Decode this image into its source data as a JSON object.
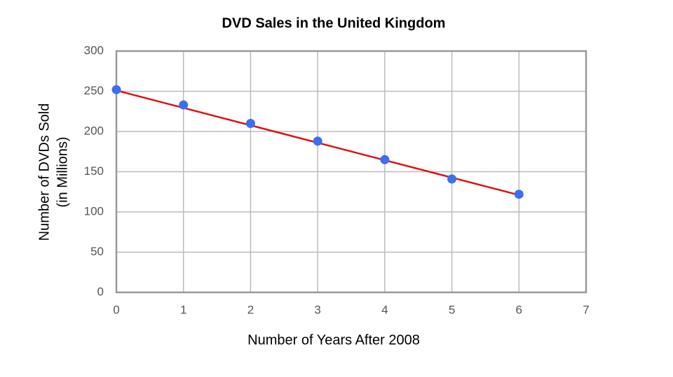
{
  "chart_data": {
    "type": "scatter",
    "title": "DVD Sales in the United Kingdom",
    "xlabel": "Number of Years After 2008",
    "ylabel": [
      "Number of DVDs Sold",
      "(in Millions)"
    ],
    "x": [
      0,
      1,
      2,
      3,
      4,
      5,
      6
    ],
    "series": [
      {
        "color": "#3a6ff0",
        "values": [
          252,
          233,
          210,
          188,
          165,
          141,
          122
        ]
      }
    ],
    "trend_line": {
      "color": "#e01010",
      "x": [
        0,
        6
      ],
      "values": [
        251,
        121
      ]
    },
    "xlim": [
      0,
      7
    ],
    "xticks": [
      0,
      1,
      2,
      3,
      4,
      5,
      6,
      7
    ],
    "ylim": [
      0,
      300
    ],
    "yticks": [
      0,
      50,
      100,
      150,
      200,
      250,
      300
    ],
    "grid": true
  }
}
